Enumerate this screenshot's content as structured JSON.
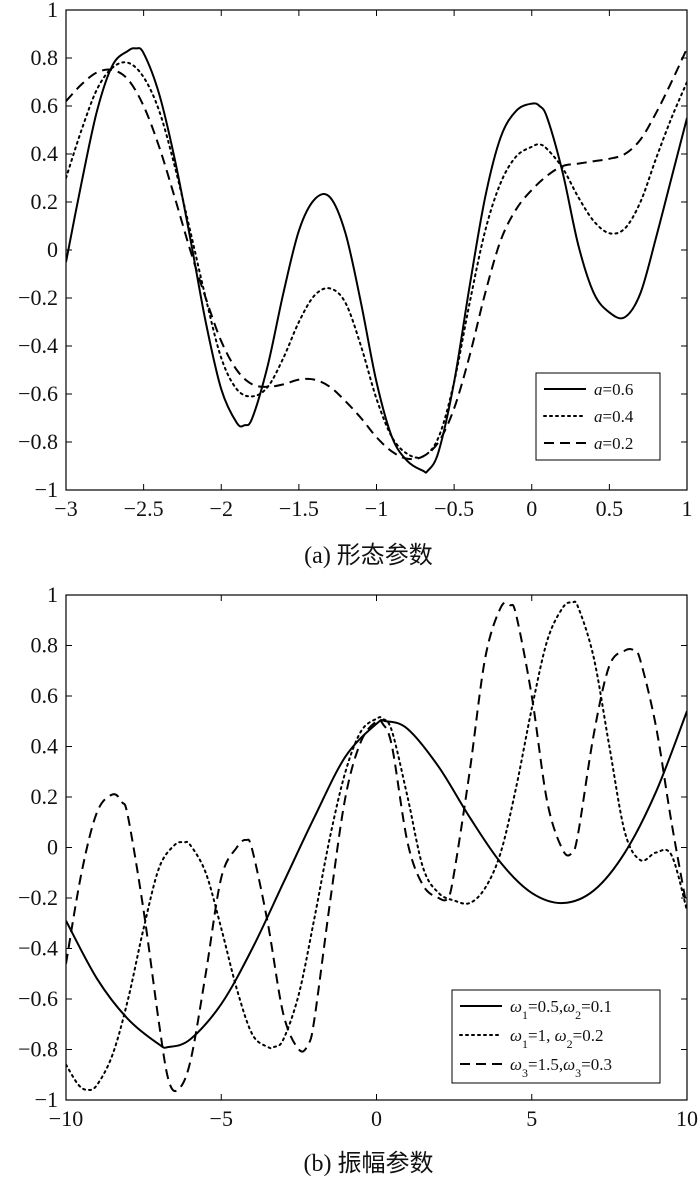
{
  "chart_data": [
    {
      "type": "line",
      "caption": "(a) 形态参数",
      "xlim": [
        -3,
        1
      ],
      "ylim": [
        -1,
        1
      ],
      "xticks": [
        "−3",
        "−2.5",
        "−2",
        "−1.5",
        "−1",
        "−0.5",
        "0",
        "0.5",
        "1"
      ],
      "xtick_values": [
        -3,
        -2.5,
        -2,
        -1.5,
        -1,
        -0.5,
        0,
        0.5,
        1
      ],
      "yticks": [
        "−1",
        "−0.8",
        "−0.6",
        "−0.4",
        "−0.2",
        "0",
        "0.2",
        "0.4",
        "0.6",
        "0.8",
        "1"
      ],
      "ytick_values": [
        -1,
        -0.8,
        -0.6,
        -0.4,
        -0.2,
        0,
        0.2,
        0.4,
        0.6,
        0.8,
        1
      ],
      "grid": false,
      "legend_position": "bottom-right",
      "series": [
        {
          "name": "a=0.6",
          "name_var": "a",
          "name_rest": "=0.6",
          "style": "solid",
          "x": [
            -3,
            -2.9,
            -2.8,
            -2.7,
            -2.6,
            -2.55,
            -2.5,
            -2.4,
            -2.3,
            -2.2,
            -2.1,
            -2.0,
            -1.9,
            -1.85,
            -1.8,
            -1.7,
            -1.6,
            -1.5,
            -1.4,
            -1.3,
            -1.2,
            -1.1,
            -1.0,
            -0.9,
            -0.8,
            -0.7,
            -0.67,
            -0.6,
            -0.5,
            -0.4,
            -0.3,
            -0.2,
            -0.1,
            0.0,
            0.05,
            0.1,
            0.2,
            0.3,
            0.4,
            0.5,
            0.6,
            0.7,
            0.8,
            0.9,
            1.0
          ],
          "y": [
            -0.05,
            0.28,
            0.58,
            0.77,
            0.83,
            0.84,
            0.82,
            0.65,
            0.38,
            0.05,
            -0.3,
            -0.58,
            -0.72,
            -0.73,
            -0.7,
            -0.48,
            -0.18,
            0.08,
            0.21,
            0.22,
            0.07,
            -0.22,
            -0.55,
            -0.78,
            -0.88,
            -0.92,
            -0.92,
            -0.84,
            -0.55,
            -0.15,
            0.22,
            0.47,
            0.58,
            0.61,
            0.6,
            0.55,
            0.32,
            0.02,
            -0.18,
            -0.26,
            -0.28,
            -0.18,
            0.05,
            0.3,
            0.55
          ]
        },
        {
          "name": "a=0.4",
          "name_var": "a",
          "name_rest": "=0.4",
          "style": "dotted",
          "x": [
            -3,
            -2.9,
            -2.8,
            -2.7,
            -2.6,
            -2.5,
            -2.4,
            -2.3,
            -2.2,
            -2.1,
            -2.0,
            -1.9,
            -1.8,
            -1.7,
            -1.6,
            -1.5,
            -1.4,
            -1.3,
            -1.2,
            -1.1,
            -1.0,
            -0.9,
            -0.8,
            -0.7,
            -0.6,
            -0.5,
            -0.4,
            -0.3,
            -0.2,
            -0.1,
            0.0,
            0.05,
            0.1,
            0.2,
            0.3,
            0.4,
            0.5,
            0.6,
            0.7,
            0.8,
            0.9,
            1.0
          ],
          "y": [
            0.3,
            0.5,
            0.67,
            0.76,
            0.78,
            0.72,
            0.58,
            0.35,
            0.08,
            -0.2,
            -0.45,
            -0.58,
            -0.61,
            -0.57,
            -0.45,
            -0.3,
            -0.19,
            -0.16,
            -0.22,
            -0.4,
            -0.62,
            -0.78,
            -0.85,
            -0.86,
            -0.78,
            -0.55,
            -0.22,
            0.08,
            0.28,
            0.39,
            0.43,
            0.44,
            0.42,
            0.34,
            0.22,
            0.12,
            0.07,
            0.09,
            0.2,
            0.38,
            0.55,
            0.7
          ]
        },
        {
          "name": "a=0.2",
          "name_var": "a",
          "name_rest": "=0.2",
          "style": "dashed",
          "x": [
            -3,
            -2.9,
            -2.8,
            -2.7,
            -2.6,
            -2.5,
            -2.4,
            -2.3,
            -2.2,
            -2.1,
            -2.0,
            -1.9,
            -1.8,
            -1.7,
            -1.6,
            -1.5,
            -1.4,
            -1.3,
            -1.2,
            -1.1,
            -1.0,
            -0.9,
            -0.8,
            -0.7,
            -0.6,
            -0.5,
            -0.4,
            -0.3,
            -0.2,
            -0.1,
            0.0,
            0.1,
            0.2,
            0.3,
            0.4,
            0.5,
            0.6,
            0.7,
            0.8,
            0.9,
            1.0
          ],
          "y": [
            0.62,
            0.69,
            0.74,
            0.75,
            0.71,
            0.6,
            0.43,
            0.22,
            0.0,
            -0.2,
            -0.38,
            -0.5,
            -0.56,
            -0.57,
            -0.56,
            -0.54,
            -0.54,
            -0.57,
            -0.63,
            -0.7,
            -0.78,
            -0.84,
            -0.87,
            -0.86,
            -0.8,
            -0.66,
            -0.44,
            -0.18,
            0.04,
            0.17,
            0.25,
            0.31,
            0.35,
            0.36,
            0.37,
            0.38,
            0.4,
            0.46,
            0.57,
            0.7,
            0.84
          ]
        }
      ]
    },
    {
      "type": "line",
      "caption": "(b) 振幅参数",
      "xlim": [
        -10,
        10
      ],
      "ylim": [
        -1,
        1
      ],
      "xticks": [
        "−10",
        "−5",
        "0",
        "5",
        "10"
      ],
      "xtick_values": [
        -10,
        -5,
        0,
        5,
        10
      ],
      "yticks": [
        "−1",
        "−0.8",
        "−0.6",
        "−0.4",
        "−0.2",
        "0",
        "0.2",
        "0.4",
        "0.6",
        "0.8",
        "1"
      ],
      "ytick_values": [
        -1,
        -0.8,
        -0.6,
        -0.4,
        -0.2,
        0,
        0.2,
        0.4,
        0.6,
        0.8,
        1
      ],
      "grid": false,
      "legend_position": "bottom-right",
      "series": [
        {
          "name": "ω1=0.5,ω2=0.1",
          "legend_parts": [
            [
              "ω",
              "it"
            ],
            [
              "1",
              "sub"
            ],
            [
              "=0.5,",
              ""
            ],
            [
              "ω",
              "it"
            ],
            [
              "2",
              "sub"
            ],
            [
              "=0.1",
              ""
            ]
          ],
          "style": "solid",
          "x": [
            -10,
            -9,
            -8,
            -7,
            -6.7,
            -6,
            -5,
            -4,
            -3,
            -2,
            -1,
            0,
            0.3,
            1,
            2,
            3,
            4,
            5,
            6,
            7,
            8,
            9,
            10
          ],
          "y": [
            -0.29,
            -0.52,
            -0.68,
            -0.78,
            -0.79,
            -0.76,
            -0.62,
            -0.4,
            -0.14,
            0.12,
            0.36,
            0.49,
            0.5,
            0.47,
            0.32,
            0.12,
            -0.06,
            -0.18,
            -0.22,
            -0.17,
            -0.02,
            0.22,
            0.54
          ]
        },
        {
          "name": "ω1=1, ω2=0.2",
          "legend_parts": [
            [
              "ω",
              "it"
            ],
            [
              "1",
              "sub"
            ],
            [
              "=1,   ",
              ""
            ],
            [
              "ω",
              "it"
            ],
            [
              "2",
              "sub"
            ],
            [
              "=0.2",
              ""
            ]
          ],
          "style": "dotted",
          "x": [
            -10,
            -9.6,
            -9.3,
            -9,
            -8.5,
            -8,
            -7.5,
            -7,
            -6.5,
            -6.2,
            -6,
            -5.5,
            -5,
            -4.5,
            -4,
            -3.5,
            -3.3,
            -3,
            -2.5,
            -2,
            -1.5,
            -1,
            -0.5,
            0,
            0.2,
            0.5,
            1,
            1.5,
            2,
            2.5,
            3,
            3.5,
            4,
            4.5,
            5,
            5.5,
            6,
            6.3,
            6.5,
            7,
            7.5,
            8,
            8.5,
            9,
            9.5,
            10
          ],
          "y": [
            -0.86,
            -0.94,
            -0.96,
            -0.94,
            -0.82,
            -0.6,
            -0.32,
            -0.08,
            0.01,
            0.02,
            0.01,
            -0.1,
            -0.32,
            -0.56,
            -0.74,
            -0.79,
            -0.79,
            -0.76,
            -0.58,
            -0.28,
            0.04,
            0.3,
            0.46,
            0.51,
            0.51,
            0.46,
            0.2,
            -0.08,
            -0.18,
            -0.21,
            -0.22,
            -0.16,
            -0.02,
            0.24,
            0.55,
            0.82,
            0.95,
            0.97,
            0.95,
            0.75,
            0.4,
            0.06,
            -0.05,
            -0.02,
            -0.03,
            -0.25
          ]
        },
        {
          "name": "ω3=1.5,ω3=0.3",
          "legend_parts": [
            [
              "ω",
              "it"
            ],
            [
              "3",
              "sub"
            ],
            [
              "=1.5,",
              ""
            ],
            [
              "ω",
              "it"
            ],
            [
              "3",
              "sub"
            ],
            [
              "=0.3",
              ""
            ]
          ],
          "style": "dashed",
          "x": [
            -10,
            -9.5,
            -9,
            -8.5,
            -8.2,
            -8,
            -7.5,
            -7,
            -6.7,
            -6.4,
            -6,
            -5.5,
            -5,
            -4.5,
            -4.2,
            -4,
            -3.5,
            -3,
            -2.5,
            -2.2,
            -2,
            -1.5,
            -1,
            -0.5,
            0,
            0.2,
            0.5,
            1,
            1.5,
            2,
            2.3,
            2.5,
            3,
            3.5,
            4,
            4.3,
            4.5,
            5,
            5.5,
            6,
            6.3,
            6.5,
            7,
            7.5,
            8,
            8.3,
            8.5,
            9,
            9.5,
            10
          ],
          "y": [
            -0.46,
            -0.1,
            0.14,
            0.21,
            0.18,
            0.12,
            -0.25,
            -0.7,
            -0.92,
            -0.96,
            -0.85,
            -0.5,
            -0.12,
            0.0,
            0.03,
            -0.01,
            -0.3,
            -0.66,
            -0.8,
            -0.78,
            -0.68,
            -0.22,
            0.2,
            0.42,
            0.5,
            0.49,
            0.4,
            0.02,
            -0.15,
            -0.2,
            -0.2,
            -0.1,
            0.3,
            0.75,
            0.95,
            0.96,
            0.92,
            0.6,
            0.18,
            -0.01,
            -0.02,
            0.06,
            0.45,
            0.72,
            0.78,
            0.78,
            0.74,
            0.48,
            0.1,
            -0.24
          ]
        }
      ]
    }
  ]
}
